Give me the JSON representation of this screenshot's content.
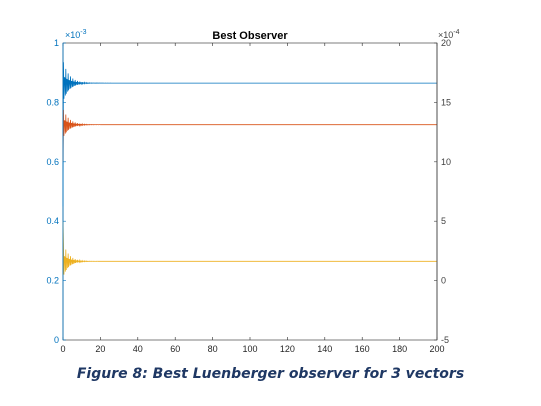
{
  "chart_data": {
    "type": "line",
    "title": "Best Observer",
    "xlim": [
      0,
      200
    ],
    "x_ticks": [
      "0",
      "20",
      "40",
      "60",
      "80",
      "100",
      "120",
      "140",
      "160",
      "180",
      "200"
    ],
    "y_left": {
      "lim": [
        0,
        1
      ],
      "ticks": [
        "0",
        "0.2",
        "0.4",
        "0.6",
        "0.8",
        "1"
      ],
      "exponent_base": "×10",
      "exponent": "-3",
      "color": "#0072bd"
    },
    "y_right": {
      "lim": [
        -5,
        20
      ],
      "ticks": [
        "-5",
        "0",
        "5",
        "10",
        "15",
        "20"
      ],
      "exponent_base": "×10",
      "exponent": "-4",
      "color": "#404040"
    },
    "series": [
      {
        "color": "#0072bd",
        "start": 0.45,
        "steady": 0.865,
        "osc_amp": 0.07,
        "decay": 1.1,
        "freq": 2.4
      },
      {
        "color": "#d95319",
        "start": 0.6,
        "steady": 0.725,
        "osc_amp": 0.05,
        "decay": 1.1,
        "freq": 2.4
      },
      {
        "color": "#edb120",
        "start": 0.4,
        "steady": 0.265,
        "osc_amp": 0.06,
        "decay": 1.0,
        "freq": 2.4
      }
    ],
    "grid": false
  },
  "caption": "Figure 8: Best Luenberger observer for 3 vectors"
}
